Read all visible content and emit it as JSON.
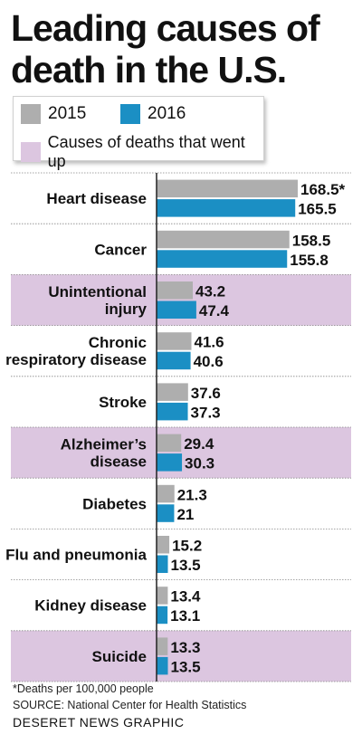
{
  "title": "Leading causes of death in the U.S.",
  "legend": {
    "series_2015": "2015",
    "series_2016": "2016",
    "went_up": "Causes of deaths that went up"
  },
  "colors": {
    "series_2015": "#aeaeae",
    "series_2016": "#1b8fc4",
    "went_up": "#dcc6e0",
    "axis": "#222222",
    "divider": "#888888"
  },
  "chart_data": {
    "type": "bar",
    "orientation": "horizontal",
    "categories": [
      "Heart disease",
      "Cancer",
      "Unintentional injury",
      "Chronic respiratory disease",
      "Stroke",
      "Alzheimer’s disease",
      "Diabetes",
      "Flu and pneumonia",
      "Kidney disease",
      "Suicide"
    ],
    "category_lines": [
      [
        "Heart disease"
      ],
      [
        "Cancer"
      ],
      [
        "Unintentional",
        "injury"
      ],
      [
        "Chronic",
        "respiratory disease"
      ],
      [
        "Stroke"
      ],
      [
        "Alzheimer’s",
        "disease"
      ],
      [
        "Diabetes"
      ],
      [
        "Flu and pneumonia"
      ],
      [
        "Kidney disease"
      ],
      [
        "Suicide"
      ]
    ],
    "series": [
      {
        "name": "2015",
        "values": [
          168.5,
          158.5,
          43.2,
          41.6,
          37.6,
          29.4,
          21.3,
          15.2,
          13.4,
          13.3
        ]
      },
      {
        "name": "2016",
        "values": [
          165.5,
          155.8,
          47.4,
          40.6,
          37.3,
          30.3,
          21,
          13.5,
          13.1,
          13.5
        ]
      }
    ],
    "data_labels": [
      [
        "168.5*",
        "158.5",
        "43.2",
        "41.6",
        "37.6",
        "29.4",
        "21.3",
        "15.2",
        "13.4",
        "13.3"
      ],
      [
        "165.5",
        "155.8",
        "47.4",
        "40.6",
        "37.3",
        "30.3",
        "21",
        "13.5",
        "13.1",
        "13.5"
      ]
    ],
    "went_up": [
      false,
      false,
      true,
      false,
      false,
      true,
      false,
      false,
      false,
      true
    ],
    "xlim": [
      0,
      168.5
    ]
  },
  "footnote": "*Deaths per 100,000 people",
  "source": "SOURCE: National Center for Health Statistics",
  "credit": "DESERET NEWS GRAPHIC"
}
